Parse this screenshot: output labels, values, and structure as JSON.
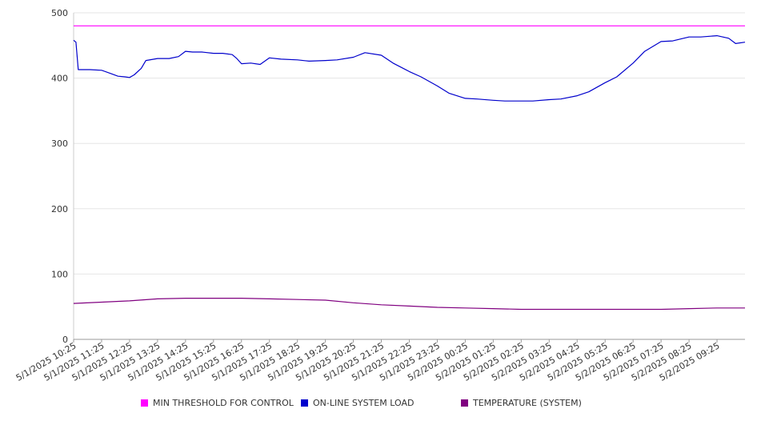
{
  "chart_data": {
    "type": "line",
    "title": "",
    "xlabel": "",
    "ylabel": "",
    "ylim": [
      0,
      500
    ],
    "y_ticks": [
      0,
      100,
      200,
      300,
      400,
      500
    ],
    "grid": "horizontal",
    "legend_position": "bottom",
    "x_tick_labels": [
      "5/1/2025 10:25",
      "5/1/2025 11:25",
      "5/1/2025 12:25",
      "5/1/2025 13:25",
      "5/1/2025 14:25",
      "5/1/2025 15:25",
      "5/1/2025 16:25",
      "5/1/2025 17:25",
      "5/1/2025 18:25",
      "5/1/2025 19:25",
      "5/1/2025 20:25",
      "5/1/2025 21:25",
      "5/1/2025 22:25",
      "5/1/2025 23:25",
      "5/2/2025 00:25",
      "5/2/2025 01:25",
      "5/2/2025 02:25",
      "5/2/2025 03:25",
      "5/2/2025 04:25",
      "5/2/2025 05:25",
      "5/2/2025 06:25",
      "5/2/2025 07:25",
      "5/2/2025 08:25",
      "5/2/2025 09:25"
    ],
    "x_range": [
      "5/1/2025 10:25",
      "5/2/2025 10:25"
    ],
    "series": [
      {
        "name": "MIN THRESHOLD FOR CONTROL",
        "color": "#ff00ff",
        "points": [
          [
            "5/1/2025 10:25",
            480
          ],
          [
            "5/2/2025 10:25",
            480
          ]
        ]
      },
      {
        "name": "ON-LINE SYSTEM LOAD",
        "color": "#0000cc",
        "points": [
          [
            "5/1/2025 10:25",
            458
          ],
          [
            "5/1/2025 10:30",
            455
          ],
          [
            "5/1/2025 10:35",
            413
          ],
          [
            "5/1/2025 11:00",
            413
          ],
          [
            "5/1/2025 11:25",
            412
          ],
          [
            "5/1/2025 11:45",
            407
          ],
          [
            "5/1/2025 12:00",
            403
          ],
          [
            "5/1/2025 12:15",
            402
          ],
          [
            "5/1/2025 12:25",
            401
          ],
          [
            "5/1/2025 12:35",
            405
          ],
          [
            "5/1/2025 12:50",
            415
          ],
          [
            "5/1/2025 13:00",
            427
          ],
          [
            "5/1/2025 13:25",
            430
          ],
          [
            "5/1/2025 13:50",
            430
          ],
          [
            "5/1/2025 14:10",
            433
          ],
          [
            "5/1/2025 14:25",
            441
          ],
          [
            "5/1/2025 14:40",
            440
          ],
          [
            "5/1/2025 15:00",
            440
          ],
          [
            "5/1/2025 15:25",
            438
          ],
          [
            "5/1/2025 15:45",
            438
          ],
          [
            "5/1/2025 16:05",
            436
          ],
          [
            "5/1/2025 16:15",
            430
          ],
          [
            "5/1/2025 16:25",
            422
          ],
          [
            "5/1/2025 16:45",
            423
          ],
          [
            "5/1/2025 17:05",
            421
          ],
          [
            "5/1/2025 17:25",
            431
          ],
          [
            "5/1/2025 17:50",
            429
          ],
          [
            "5/1/2025 18:25",
            428
          ],
          [
            "5/1/2025 18:50",
            426
          ],
          [
            "5/1/2025 19:25",
            427
          ],
          [
            "5/1/2025 19:50",
            428
          ],
          [
            "5/1/2025 20:25",
            432
          ],
          [
            "5/1/2025 20:50",
            439
          ],
          [
            "5/1/2025 21:25",
            435
          ],
          [
            "5/1/2025 21:50",
            423
          ],
          [
            "5/1/2025 22:25",
            410
          ],
          [
            "5/1/2025 22:50",
            402
          ],
          [
            "5/1/2025 23:25",
            388
          ],
          [
            "5/1/2025 23:50",
            377
          ],
          [
            "5/2/2025 00:25",
            369
          ],
          [
            "5/2/2025 00:50",
            368
          ],
          [
            "5/2/2025 01:25",
            366
          ],
          [
            "5/2/2025 01:50",
            365
          ],
          [
            "5/2/2025 02:25",
            365
          ],
          [
            "5/2/2025 02:50",
            365
          ],
          [
            "5/2/2025 03:25",
            367
          ],
          [
            "5/2/2025 03:50",
            368
          ],
          [
            "5/2/2025 04:25",
            373
          ],
          [
            "5/2/2025 04:50",
            379
          ],
          [
            "5/2/2025 05:25",
            393
          ],
          [
            "5/2/2025 05:50",
            402
          ],
          [
            "5/2/2025 06:25",
            423
          ],
          [
            "5/2/2025 06:50",
            441
          ],
          [
            "5/2/2025 07:25",
            456
          ],
          [
            "5/2/2025 07:50",
            457
          ],
          [
            "5/2/2025 08:25",
            463
          ],
          [
            "5/2/2025 08:50",
            463
          ],
          [
            "5/2/2025 09:25",
            465
          ],
          [
            "5/2/2025 09:50",
            461
          ],
          [
            "5/2/2025 10:05",
            453
          ],
          [
            "5/2/2025 10:25",
            455
          ]
        ]
      },
      {
        "name": "TEMPERATURE (SYSTEM)",
        "color": "#800080",
        "points": [
          [
            "5/1/2025 10:25",
            55
          ],
          [
            "5/1/2025 11:25",
            57
          ],
          [
            "5/1/2025 12:25",
            59
          ],
          [
            "5/1/2025 13:25",
            62
          ],
          [
            "5/1/2025 14:25",
            63
          ],
          [
            "5/1/2025 15:25",
            63
          ],
          [
            "5/1/2025 16:25",
            63
          ],
          [
            "5/1/2025 17:25",
            62
          ],
          [
            "5/1/2025 18:25",
            61
          ],
          [
            "5/1/2025 19:25",
            60
          ],
          [
            "5/1/2025 20:25",
            56
          ],
          [
            "5/1/2025 21:25",
            53
          ],
          [
            "5/1/2025 22:25",
            51
          ],
          [
            "5/1/2025 23:25",
            49
          ],
          [
            "5/2/2025 00:25",
            48
          ],
          [
            "5/2/2025 01:25",
            47
          ],
          [
            "5/2/2025 02:25",
            46
          ],
          [
            "5/2/2025 03:25",
            46
          ],
          [
            "5/2/2025 04:25",
            46
          ],
          [
            "5/2/2025 05:25",
            46
          ],
          [
            "5/2/2025 06:25",
            46
          ],
          [
            "5/2/2025 07:25",
            46
          ],
          [
            "5/2/2025 08:25",
            47
          ],
          [
            "5/2/2025 09:25",
            48
          ],
          [
            "5/2/2025 10:25",
            48
          ]
        ]
      }
    ]
  }
}
